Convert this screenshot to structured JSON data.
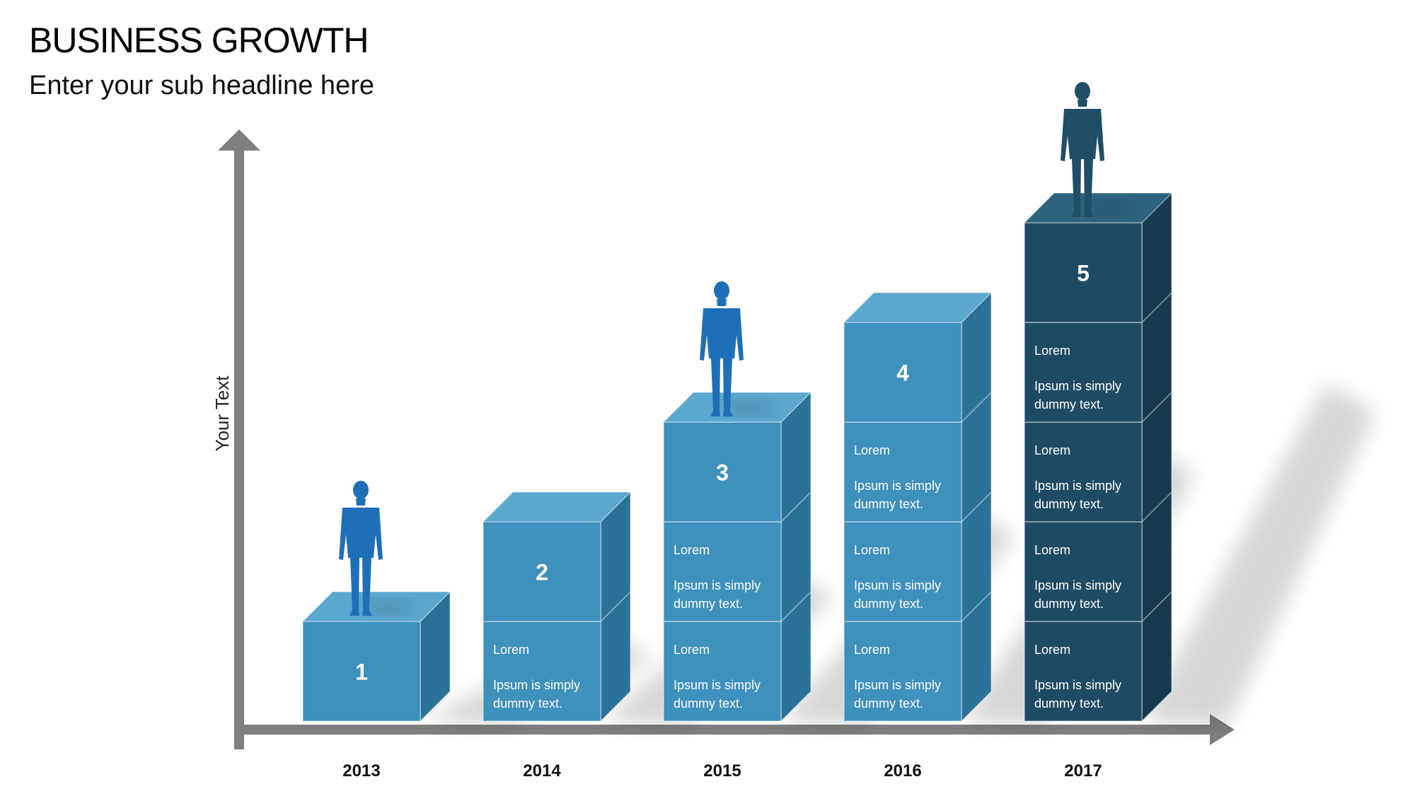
{
  "title": "BUSINESS GROWTH",
  "subtitle": "Enter your sub headline here",
  "y_axis_label": "Your Text",
  "colors": {
    "axis": "#7f7f7f",
    "light_face": "#3e90bd",
    "light_top": "#5ba8cf",
    "light_side": "#2b7299",
    "dark_face": "#1e4a64",
    "dark_top": "#2e6380",
    "dark_side": "#163a50",
    "person_blue": "#1f6fb8",
    "person_dark": "#1f4e66"
  },
  "chart_data": {
    "type": "bar",
    "categories": [
      "2013",
      "2014",
      "2015",
      "2016",
      "2017"
    ],
    "values": [
      1,
      2,
      3,
      4,
      5
    ],
    "step_labels": [
      "1",
      "2",
      "3",
      "4",
      "5"
    ],
    "cube_text": {
      "heading": "Lorem",
      "body_line1": "Ipsum is simply",
      "body_line2": "dummy text."
    },
    "people_on_steps": [
      "2013",
      "2015",
      "2017"
    ],
    "ylabel": "Your Text",
    "xlabel": "",
    "grid": false
  }
}
